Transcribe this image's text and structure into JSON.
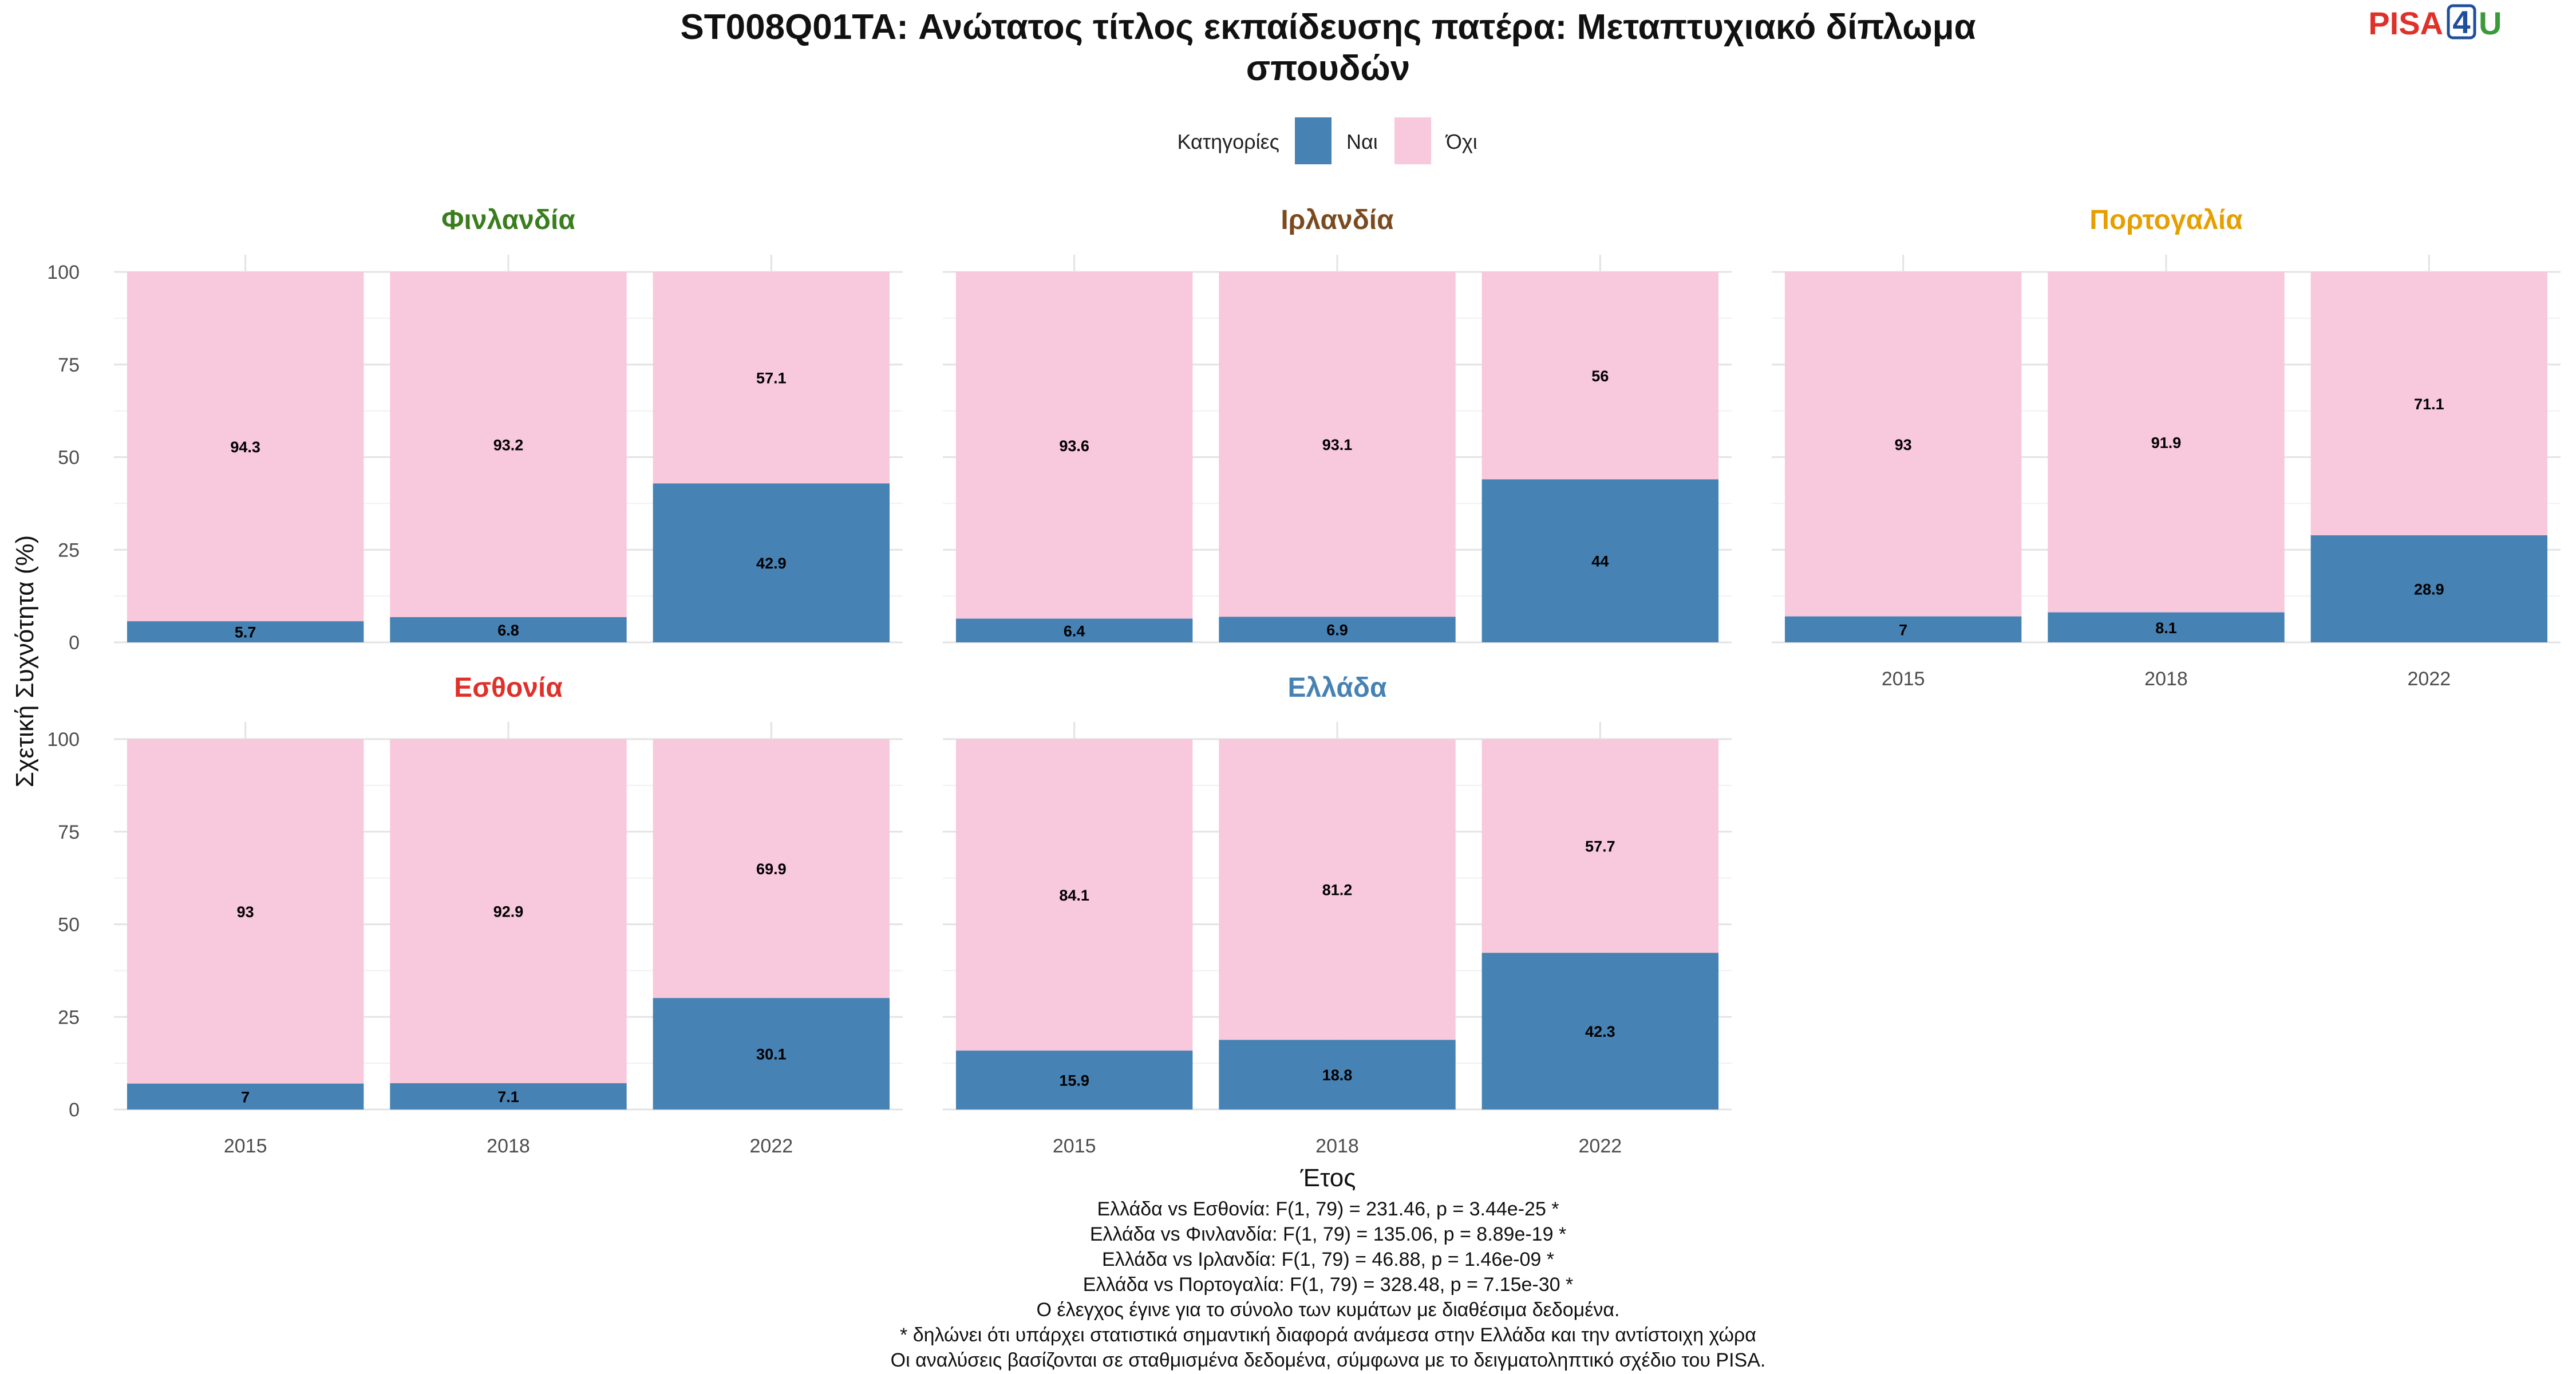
{
  "chart_data": {
    "type": "bar",
    "stacked": true,
    "title_lines": [
      "ST008Q01TA: Ανώτατος τίτλος εκπαίδευσης πατέρα: Μεταπτυχιακό δίπλωμα",
      "σπουδών"
    ],
    "legend": {
      "title": "Κατηγορίες",
      "placement": "top",
      "entries": [
        {
          "label": "Ναι",
          "color": "#4682B4"
        },
        {
          "label": "Όχι",
          "color": "#F8C8DC"
        }
      ]
    },
    "ylabel": "Σχετική Συχνότητα (%)",
    "xlabel": "Έτος",
    "ylim": [
      0,
      100
    ],
    "yticks": [
      0,
      25,
      50,
      75,
      100
    ],
    "categories": [
      "2015",
      "2018",
      "2022"
    ],
    "grid": true,
    "panels": [
      {
        "name": "Φινλανδία",
        "color": "#3A7D1E",
        "series": [
          {
            "name": "Ναι",
            "values": [
              5.7,
              6.8,
              42.9
            ]
          },
          {
            "name": "Όχι",
            "values": [
              94.3,
              93.2,
              57.1
            ]
          }
        ]
      },
      {
        "name": "Ιρλανδία",
        "color": "#7B4A1E",
        "series": [
          {
            "name": "Ναι",
            "values": [
              6.4,
              6.9,
              44
            ]
          },
          {
            "name": "Όχι",
            "values": [
              93.6,
              93.1,
              56
            ]
          }
        ]
      },
      {
        "name": "Πορτογαλία",
        "color": "#E69F00",
        "series": [
          {
            "name": "Ναι",
            "values": [
              7,
              8.1,
              28.9
            ]
          },
          {
            "name": "Όχι",
            "values": [
              93,
              91.9,
              71.1
            ]
          }
        ]
      },
      {
        "name": "Εσθονία",
        "color": "#E0302A",
        "series": [
          {
            "name": "Ναι",
            "values": [
              7,
              7.1,
              30.1
            ]
          },
          {
            "name": "Όχι",
            "values": [
              93,
              92.9,
              69.9
            ]
          }
        ]
      },
      {
        "name": "Ελλάδα",
        "color": "#4682B4",
        "series": [
          {
            "name": "Ναι",
            "values": [
              15.9,
              18.8,
              42.3
            ]
          },
          {
            "name": "Όχι",
            "values": [
              84.1,
              81.2,
              57.7
            ]
          }
        ]
      }
    ],
    "caption": [
      "Ελλάδα vs Εσθονία: F(1, 79) = 231.46, p = 3.44e-25 *",
      "Ελλάδα vs Φινλανδία: F(1, 79) = 135.06, p = 8.89e-19 *",
      "Ελλάδα vs Ιρλανδία: F(1, 79) = 46.88, p = 1.46e-09 *",
      "Ελλάδα vs Πορτογαλία: F(1, 79) = 328.48, p = 7.15e-30 *",
      "Ο έλεγχος έγινε για το σύνολο των κυμάτων με διαθέσιμα δεδομένα.",
      "* δηλώνει ότι υπάρχει στατιστικά σημαντική διαφορά ανάμεσα στην Ελλάδα και την αντίστοιχη χώρα",
      "Οι αναλύσεις βασίζονται σε σταθμισμένα δεδομένα, σύμφωνα με το δειγματοληπτικό σχέδιο του PISA."
    ]
  },
  "logo": {
    "text_left": "PISA",
    "text_box": "4",
    "text_right": "U",
    "color_left": "#E0302A",
    "color_box": "#1F4E9A",
    "color_right": "#3A9A3A"
  }
}
